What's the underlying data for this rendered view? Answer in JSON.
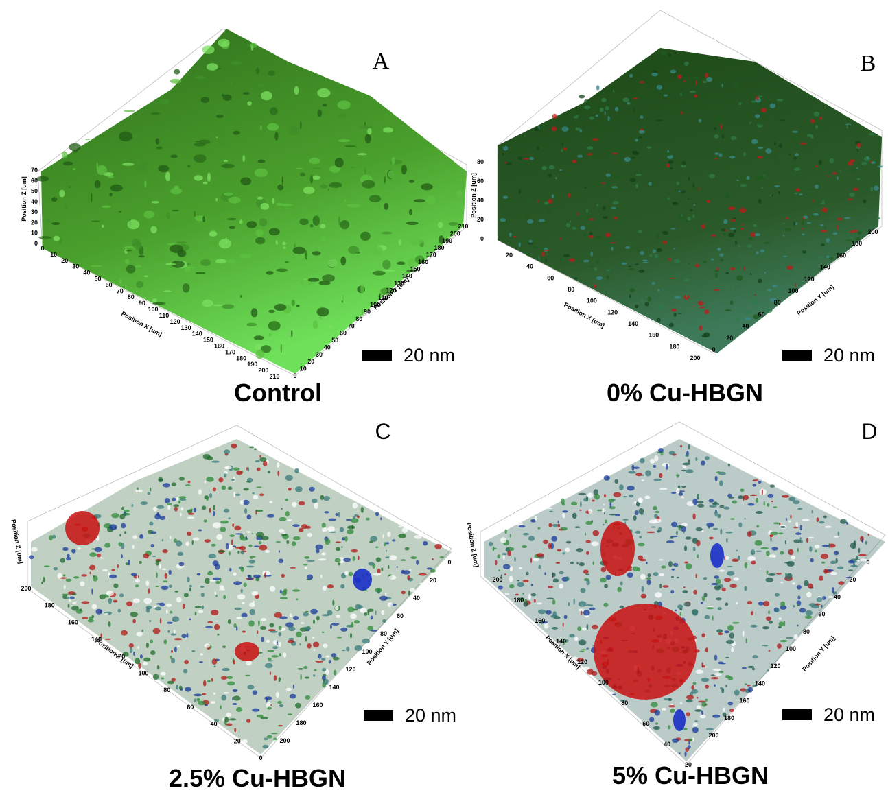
{
  "panels": [
    {
      "letter": "A",
      "caption": "Control",
      "scale_bar": "20 nm",
      "x_axis": {
        "label": "Position X [um]",
        "ticks": [
          0,
          10,
          20,
          30,
          40,
          50,
          60,
          70,
          80,
          90,
          100,
          110,
          120,
          130,
          140,
          150,
          160,
          170,
          180,
          190,
          200,
          210
        ]
      },
      "y_axis": {
        "label": "Position Y [um]",
        "ticks": [
          0,
          10,
          20,
          30,
          40,
          50,
          60,
          70,
          80,
          90,
          100,
          110,
          120,
          130,
          140,
          150,
          160,
          170,
          180,
          190,
          200,
          210
        ]
      },
      "z_axis": {
        "label": "Position Z [um]",
        "ticks": [
          0,
          10,
          20,
          30,
          40,
          50,
          60,
          70
        ]
      }
    },
    {
      "letter": "B",
      "caption": "0% Cu-HBGN",
      "scale_bar": "20 nm",
      "x_axis": {
        "label": "Position X [um]",
        "ticks": [
          20,
          40,
          60,
          80,
          100,
          120,
          140,
          160,
          180,
          200
        ]
      },
      "y_axis": {
        "label": "Position Y [um]",
        "ticks": [
          0,
          20,
          40,
          60,
          80,
          100,
          120,
          140,
          160,
          180,
          200
        ]
      },
      "z_axis": {
        "label": "Position Z [um]",
        "ticks": [
          0,
          20,
          40,
          60,
          80
        ]
      }
    },
    {
      "letter": "C",
      "caption": "2.5% Cu-HBGN",
      "scale_bar": "20 nm",
      "x_axis": {
        "label": "Position X [um]",
        "ticks": [
          200,
          180,
          160,
          140,
          120,
          100,
          80,
          60,
          40,
          20,
          0
        ]
      },
      "y_axis": {
        "label": "Position Y [um]",
        "ticks": [
          0,
          20,
          40,
          60,
          80,
          100,
          120,
          140,
          160,
          180,
          200
        ]
      },
      "z_axis": {
        "label": "Position Z [um]",
        "ticks": []
      }
    },
    {
      "letter": "D",
      "caption": "5% Cu-HBGN",
      "scale_bar": "20 nm",
      "x_axis": {
        "label": "Position X [um]",
        "ticks": [
          200,
          180,
          160,
          140,
          120,
          100,
          80,
          60,
          40,
          20
        ]
      },
      "y_axis": {
        "label": "Position Y [um]",
        "ticks": [
          0,
          20,
          40,
          60,
          80,
          100,
          120,
          140,
          160,
          180,
          200
        ]
      },
      "z_axis": {
        "label": "Position Z [um]",
        "ticks": []
      }
    }
  ]
}
